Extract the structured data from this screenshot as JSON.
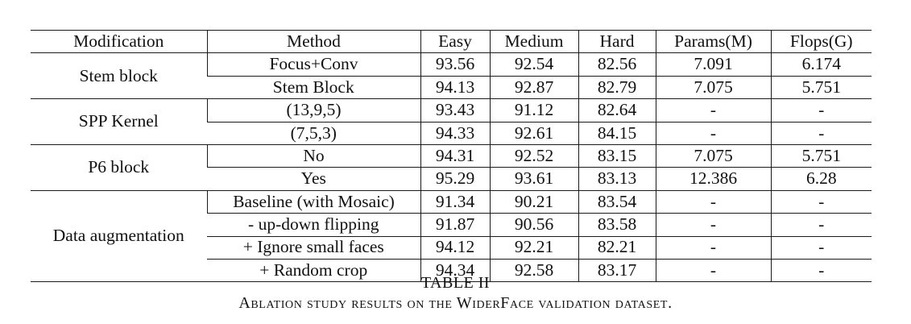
{
  "table": {
    "headers": [
      "Modification",
      "Method",
      "Easy",
      "Medium",
      "Hard",
      "Params(M)",
      "Flops(G)"
    ],
    "groups": [
      {
        "modification": "Stem block",
        "rows": [
          {
            "method": "Focus+Conv",
            "easy": "93.56",
            "medium": "92.54",
            "hard": "82.56",
            "params": "7.091",
            "flops": "6.174"
          },
          {
            "method": "Stem Block",
            "easy": "94.13",
            "medium": "92.87",
            "hard": "82.79",
            "params": "7.075",
            "flops": "5.751"
          }
        ]
      },
      {
        "modification": "SPP Kernel",
        "rows": [
          {
            "method": "(13,9,5)",
            "easy": "93.43",
            "medium": "91.12",
            "hard": "82.64",
            "params": "-",
            "flops": "-"
          },
          {
            "method": "(7,5,3)",
            "easy": "94.33",
            "medium": "92.61",
            "hard": "84.15",
            "params": "-",
            "flops": "-"
          }
        ]
      },
      {
        "modification": "P6 block",
        "rows": [
          {
            "method": "No",
            "easy": "94.31",
            "medium": "92.52",
            "hard": "83.15",
            "params": "7.075",
            "flops": "5.751"
          },
          {
            "method": "Yes",
            "easy": "95.29",
            "medium": "93.61",
            "hard": "83.13",
            "params": "12.386",
            "flops": "6.28"
          }
        ]
      },
      {
        "modification": "Data augmentation",
        "rows": [
          {
            "method": "Baseline (with Mosaic)",
            "easy": "91.34",
            "medium": "90.21",
            "hard": "83.54",
            "params": "-",
            "flops": "-"
          },
          {
            "method": "- up-down flipping",
            "easy": "91.87",
            "medium": "90.56",
            "hard": "83.58",
            "params": "-",
            "flops": "-"
          },
          {
            "method": "+ Ignore small faces",
            "easy": "94.12",
            "medium": "92.21",
            "hard": "82.21",
            "params": "-",
            "flops": "-"
          },
          {
            "method": "+ Random crop",
            "easy": "94.34",
            "medium": "92.58",
            "hard": "83.17",
            "params": "-",
            "flops": "-"
          }
        ]
      }
    ]
  },
  "caption": {
    "label": "TABLE II",
    "text": "Ablation study results on the WiderFace validation dataset."
  }
}
